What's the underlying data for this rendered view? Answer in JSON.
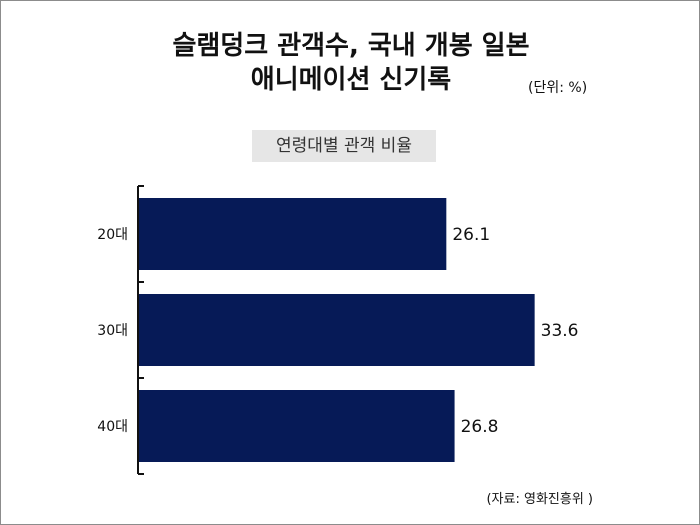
{
  "title_line1": "슬램덩크 관객수, 국내 개봉 일본",
  "title_line2": "애니메이션 신기록",
  "unit": "(단위: %)",
  "source": "(자료: 영화진흥위 )",
  "chart_data": {
    "type": "bar",
    "orientation": "horizontal",
    "title": "연령대별 관객 비율",
    "categories": [
      "20대",
      "30대",
      "40대"
    ],
    "values": [
      26.1,
      33.6,
      26.8
    ],
    "xlim": [
      0,
      40
    ],
    "color": "#061a57",
    "grid": false,
    "legend": "none"
  }
}
